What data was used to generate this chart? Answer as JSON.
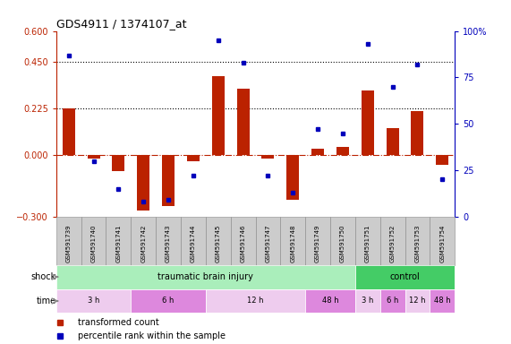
{
  "title": "GDS4911 / 1374107_at",
  "samples": [
    "GSM591739",
    "GSM591740",
    "GSM591741",
    "GSM591742",
    "GSM591743",
    "GSM591744",
    "GSM591745",
    "GSM591746",
    "GSM591747",
    "GSM591748",
    "GSM591749",
    "GSM591750",
    "GSM591751",
    "GSM591752",
    "GSM591753",
    "GSM591754"
  ],
  "transformed_count": [
    0.225,
    -0.02,
    -0.08,
    -0.27,
    -0.25,
    -0.03,
    0.38,
    0.32,
    -0.02,
    -0.22,
    0.03,
    0.04,
    0.31,
    0.13,
    0.21,
    -0.05
  ],
  "percentile_rank": [
    87,
    30,
    15,
    8,
    9,
    22,
    95,
    83,
    22,
    13,
    47,
    45,
    93,
    70,
    82,
    20
  ],
  "ylim_left": [
    -0.3,
    0.6
  ],
  "ylim_right": [
    0,
    100
  ],
  "yticks_left": [
    -0.3,
    0.0,
    0.225,
    0.45,
    0.6
  ],
  "yticks_right": [
    0,
    25,
    50,
    75,
    100
  ],
  "hlines": [
    0.225,
    0.45
  ],
  "bar_color": "#BB2200",
  "dot_color": "#0000BB",
  "shock_label": "shock",
  "time_label": "time",
  "shock_groups": [
    {
      "label": "traumatic brain injury",
      "start": 0,
      "end": 12,
      "color": "#AAEEBB"
    },
    {
      "label": "control",
      "start": 12,
      "end": 16,
      "color": "#44CC66"
    }
  ],
  "time_groups": [
    {
      "label": "3 h",
      "start": 0,
      "end": 3,
      "color": "#EECCEE"
    },
    {
      "label": "6 h",
      "start": 3,
      "end": 6,
      "color": "#DD88DD"
    },
    {
      "label": "12 h",
      "start": 6,
      "end": 10,
      "color": "#EECCEE"
    },
    {
      "label": "48 h",
      "start": 10,
      "end": 12,
      "color": "#DD88DD"
    },
    {
      "label": "3 h",
      "start": 12,
      "end": 13,
      "color": "#EECCEE"
    },
    {
      "label": "6 h",
      "start": 13,
      "end": 14,
      "color": "#DD88DD"
    },
    {
      "label": "12 h",
      "start": 14,
      "end": 15,
      "color": "#EECCEE"
    },
    {
      "label": "48 h",
      "start": 15,
      "end": 16,
      "color": "#DD88DD"
    }
  ],
  "legend_items": [
    {
      "label": "transformed count",
      "color": "#BB2200",
      "marker": "s"
    },
    {
      "label": "percentile rank within the sample",
      "color": "#0000BB",
      "marker": "s"
    }
  ],
  "dotted_line_color": "black",
  "zero_line_color": "#BB2200",
  "background_color": "white",
  "axis_label_color_left": "#BB2200",
  "axis_label_color_right": "#0000BB"
}
